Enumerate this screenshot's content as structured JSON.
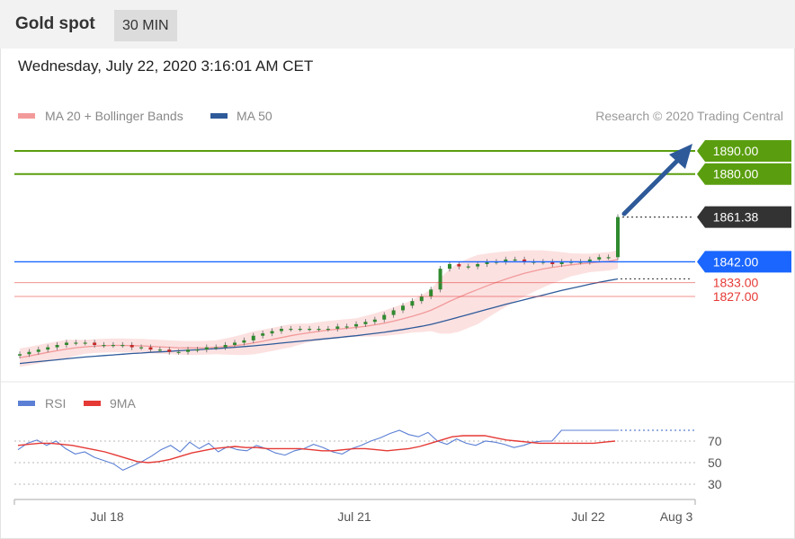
{
  "header": {
    "title": "Gold spot",
    "timeframe": "30 MIN"
  },
  "datetime": "Wednesday, July 22, 2020 3:16:01 AM CET",
  "colors": {
    "ma20": "#f29a9a",
    "ma50": "#2e5a99",
    "bands_fill": "#fbdcdc",
    "resistance": "#5a9e0f",
    "support": "#1a66ff",
    "minor_level": "#e53935",
    "last_price": "#333333",
    "candle_up": "#2f8a2f",
    "candle_down": "#c62828",
    "rsi": "#5b7fd4",
    "rsi_ma": "#e53935",
    "arrow": "#2e5a99"
  },
  "chart_data": [
    {
      "type": "candlestick",
      "legend": [
        {
          "label": "MA 20 + Bollinger Bands",
          "color": "#f29a9a"
        },
        {
          "label": "MA 50",
          "color": "#2e5a99"
        }
      ],
      "credit": "Research © 2020 Trading Central",
      "x_ticks": [
        "Jul 18",
        "Jul 21",
        "Jul 22",
        "Aug 3"
      ],
      "ylim": [
        1792,
        1897
      ],
      "levels": [
        {
          "value": 1890,
          "label": "1890.00",
          "kind": "resistance"
        },
        {
          "value": 1880,
          "label": "1880.00",
          "kind": "resistance"
        },
        {
          "value": 1861.38,
          "label": "1861.38",
          "kind": "last"
        },
        {
          "value": 1842,
          "label": "1842.00",
          "kind": "support"
        },
        {
          "value": 1833,
          "label": "1833.00",
          "kind": "minor"
        },
        {
          "value": 1827,
          "label": "1827.00",
          "kind": "minor"
        }
      ],
      "close": [
        1802,
        1803,
        1804,
        1805,
        1806,
        1807,
        1807,
        1807,
        1806,
        1806,
        1806,
        1806,
        1805,
        1805,
        1804,
        1804,
        1803,
        1803,
        1804,
        1804,
        1805,
        1805,
        1806,
        1807,
        1808,
        1810,
        1811,
        1812,
        1813,
        1813,
        1813,
        1813,
        1813,
        1813,
        1814,
        1814,
        1815,
        1816,
        1817,
        1819,
        1821,
        1823,
        1825,
        1827,
        1830,
        1839,
        1841,
        1840,
        1840,
        1841,
        1842,
        1842,
        1843,
        1843,
        1842,
        1842,
        1842,
        1841,
        1842,
        1842,
        1842,
        1843,
        1844,
        1844,
        1861.38
      ],
      "ma20": [
        1800.5,
        1801.2,
        1802.0,
        1802.8,
        1803.5,
        1804.2,
        1804.8,
        1805.2,
        1805.5,
        1805.7,
        1805.8,
        1805.8,
        1805.7,
        1805.6,
        1805.4,
        1805.2,
        1805.0,
        1804.8,
        1804.7,
        1804.7,
        1804.8,
        1805.0,
        1805.3,
        1805.7,
        1806.2,
        1806.9,
        1807.6,
        1808.4,
        1809.2,
        1810.0,
        1810.7,
        1811.3,
        1811.9,
        1812.4,
        1812.8,
        1813.2,
        1813.6,
        1814.1,
        1814.7,
        1815.4,
        1816.3,
        1817.3,
        1818.4,
        1819.6,
        1821.0,
        1822.9,
        1824.9,
        1826.7,
        1828.4,
        1830.0,
        1831.6,
        1833.1,
        1834.5,
        1835.8,
        1837.0,
        1838.0,
        1838.9,
        1839.6,
        1840.2,
        1840.7,
        1841.1,
        1841.5,
        1841.9,
        1842.2,
        1843.0
      ],
      "ma50": [
        1798.0,
        1798.4,
        1798.8,
        1799.2,
        1799.6,
        1800.0,
        1800.4,
        1800.8,
        1801.1,
        1801.4,
        1801.7,
        1802.0,
        1802.3,
        1802.5,
        1802.8,
        1803.0,
        1803.2,
        1803.5,
        1803.7,
        1803.9,
        1804.2,
        1804.4,
        1804.7,
        1805.0,
        1805.3,
        1805.6,
        1806.0,
        1806.4,
        1806.8,
        1807.2,
        1807.6,
        1808.0,
        1808.4,
        1808.8,
        1809.2,
        1809.6,
        1810.0,
        1810.5,
        1811.0,
        1811.5,
        1812.1,
        1812.7,
        1813.4,
        1814.1,
        1814.9,
        1815.9,
        1817.0,
        1818.1,
        1819.2,
        1820.3,
        1821.4,
        1822.5,
        1823.6,
        1824.6,
        1825.6,
        1826.6,
        1827.6,
        1828.6,
        1829.6,
        1830.5,
        1831.4,
        1832.3,
        1833.1,
        1833.9,
        1834.6
      ],
      "band_width": [
        4,
        4,
        4,
        4,
        4,
        4,
        3.5,
        3,
        3,
        3,
        3,
        3,
        3,
        3,
        3,
        3,
        3,
        3,
        3,
        3,
        3,
        3,
        3.5,
        4,
        4.5,
        5,
        5,
        5,
        5,
        5,
        4.5,
        4,
        4,
        4,
        4,
        4,
        4,
        4.5,
        5,
        5.5,
        6,
        6.5,
        7,
        8,
        9,
        12,
        14,
        15,
        15,
        15,
        14,
        13,
        12,
        11,
        10,
        9,
        8,
        7,
        6,
        5,
        4.5,
        4,
        4,
        4,
        4
      ]
    },
    {
      "type": "line",
      "legend": [
        {
          "label": "RSI",
          "color": "#5b7fd4"
        },
        {
          "label": "9MA",
          "color": "#e53935"
        }
      ],
      "y_ticks": [
        "70",
        "50",
        "30"
      ],
      "ylim": [
        20,
        85
      ],
      "rsi": [
        62,
        68,
        71,
        66,
        70,
        63,
        58,
        60,
        55,
        52,
        49,
        43,
        47,
        51,
        56,
        62,
        66,
        60,
        69,
        63,
        68,
        60,
        65,
        62,
        61,
        66,
        63,
        59,
        57,
        61,
        63,
        67,
        64,
        60,
        58,
        63,
        66,
        70,
        73,
        77,
        80,
        76,
        74,
        78,
        70,
        67,
        72,
        68,
        66,
        70,
        69,
        67,
        64,
        66,
        69,
        70,
        70,
        80,
        80,
        80,
        80,
        80,
        80,
        80
      ],
      "rsi_ma": [
        66,
        67,
        68,
        68,
        67,
        66,
        64,
        62,
        60,
        57,
        54,
        51,
        50,
        51,
        53,
        56,
        59,
        61,
        63,
        64,
        65,
        64,
        64,
        63,
        63,
        63,
        63,
        62,
        61,
        61,
        62,
        63,
        63,
        62,
        61,
        62,
        63,
        65,
        68,
        71,
        74,
        75,
        75,
        75,
        73,
        71,
        70,
        69,
        68,
        68,
        68,
        68,
        68,
        68,
        69,
        70
      ]
    }
  ]
}
